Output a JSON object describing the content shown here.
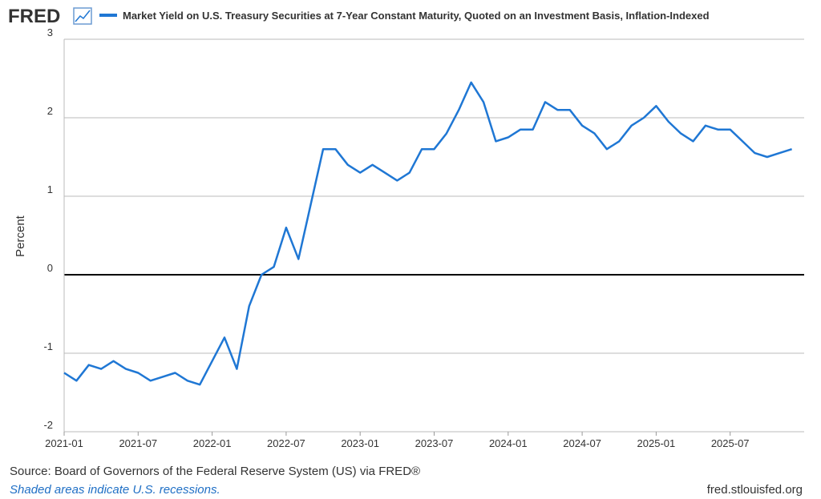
{
  "chart_data": {
    "type": "line",
    "logo": "FRED",
    "series": [
      {
        "name": "Market Yield on U.S. Treasury Securities at 7-Year Constant Maturity, Quoted on an Investment Basis, Inflation-Indexed",
        "color": "#1f77d4",
        "values": [
          -1.25,
          -1.35,
          -1.15,
          -1.2,
          -1.1,
          -1.2,
          -1.25,
          -1.35,
          -1.3,
          -1.25,
          -1.35,
          -1.4,
          -1.1,
          -0.8,
          -1.2,
          -0.4,
          0.0,
          0.1,
          0.6,
          0.2,
          0.9,
          1.6,
          1.6,
          1.4,
          1.3,
          1.4,
          1.3,
          1.2,
          1.3,
          1.6,
          1.6,
          1.8,
          2.1,
          2.45,
          2.2,
          1.7,
          1.75,
          1.85,
          1.85,
          2.2,
          2.1,
          2.1,
          1.9,
          1.8,
          1.6,
          1.7,
          1.9,
          2.0,
          2.15,
          1.95,
          1.8,
          1.7,
          1.9,
          1.85,
          1.85,
          1.7,
          1.55,
          1.5,
          1.55,
          1.6
        ]
      }
    ],
    "x": [
      "2021-01",
      "2021-02",
      "2021-03",
      "2021-04",
      "2021-05",
      "2021-06",
      "2021-07",
      "2021-08",
      "2021-09",
      "2021-10",
      "2021-11",
      "2021-12",
      "2022-01",
      "2022-02",
      "2022-03",
      "2022-04",
      "2022-05",
      "2022-06",
      "2022-07",
      "2022-08",
      "2022-09",
      "2022-10",
      "2022-11",
      "2022-12",
      "2023-01",
      "2023-02",
      "2023-03",
      "2023-04",
      "2023-05",
      "2023-06",
      "2023-07",
      "2023-08",
      "2023-09",
      "2023-10",
      "2023-11",
      "2023-12",
      "2024-01",
      "2024-02",
      "2024-03",
      "2024-04",
      "2024-05",
      "2024-06",
      "2024-07",
      "2024-08",
      "2024-09",
      "2024-10",
      "2024-11",
      "2024-12",
      "2025-01",
      "2025-02",
      "2025-03",
      "2025-04",
      "2025-05",
      "2025-06",
      "2025-07",
      "2025-08",
      "2025-09",
      "2025-10",
      "2025-11",
      "2025-12"
    ],
    "xlim": [
      "2021-01",
      "2026-01"
    ],
    "xticks": [
      "2021-01",
      "2021-07",
      "2022-01",
      "2022-07",
      "2023-01",
      "2023-07",
      "2024-01",
      "2024-07",
      "2025-01",
      "2025-07"
    ],
    "ylim": [
      -2,
      3
    ],
    "yticks": [
      -2,
      -1,
      0,
      1,
      2,
      3
    ],
    "grid": true,
    "ylabel": "Percent",
    "source": "Source: Board of Governors of the Federal Reserve System (US) via FRED®",
    "note": "Shaded areas indicate U.S. recessions.",
    "credit": "fred.stlouisfed.org"
  }
}
